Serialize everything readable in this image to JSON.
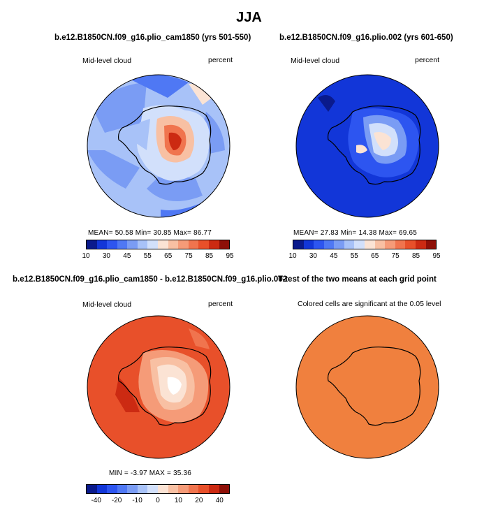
{
  "figure_title": "JJA",
  "panels": [
    {
      "title": "b.e12.B1850CN.f09_g16.plio_cam1850 (yrs 501-550)",
      "left_label": "Mid-level cloud",
      "right_label": "percent",
      "stats": "MEAN=   50.58   Min=   30.85   Max=   86.77"
    },
    {
      "title": "b.e12.B1850CN.f09_g16.plio.002 (yrs 601-650)",
      "left_label": "Mid-level cloud",
      "right_label": "percent",
      "stats": "MEAN=   27.83   Min=   14.38   Max=   69.65"
    },
    {
      "title": "b.e12.B1850CN.f09_g16.plio_cam1850 - b.e12.B1850CN.f09_g16.plio.002",
      "left_label": "Mid-level cloud",
      "right_label": "percent",
      "stats": "MIN  =   -3.97  MAX  =   35.36"
    },
    {
      "title": "T-test of the two means at each grid point",
      "subtitle": "Colored cells are significant at the 0.05 level"
    }
  ],
  "colorbar_abs": {
    "colors": [
      "#0a1a8c",
      "#1236d8",
      "#2d55f0",
      "#4f78f4",
      "#7a9cf4",
      "#a8c2f8",
      "#d2e0fb",
      "#fbe3d4",
      "#f8c0a3",
      "#f59b78",
      "#f0744e",
      "#e8502a",
      "#cc2a12",
      "#8e1008"
    ],
    "tick_labels": [
      "10",
      "30",
      "45",
      "55",
      "65",
      "75",
      "85",
      "95"
    ]
  },
  "colorbar_diff": {
    "colors": [
      "#0a1a8c",
      "#1236d8",
      "#2d55f0",
      "#4f78f4",
      "#7a9cf4",
      "#a8c2f8",
      "#d2e0fb",
      "#fbe3d4",
      "#f8c0a3",
      "#f59b78",
      "#f0744e",
      "#e8502a",
      "#cc2a12",
      "#8e1008"
    ],
    "tick_labels": [
      "-40",
      "-20",
      "-10",
      "0",
      "10",
      "20",
      "40"
    ]
  },
  "colors": {
    "panel1_ocean": "#a8c2f8",
    "panel2_ocean": "#1236d8",
    "panel3_ocean": "#e8502a",
    "panel4_fill": "#f0803e"
  }
}
